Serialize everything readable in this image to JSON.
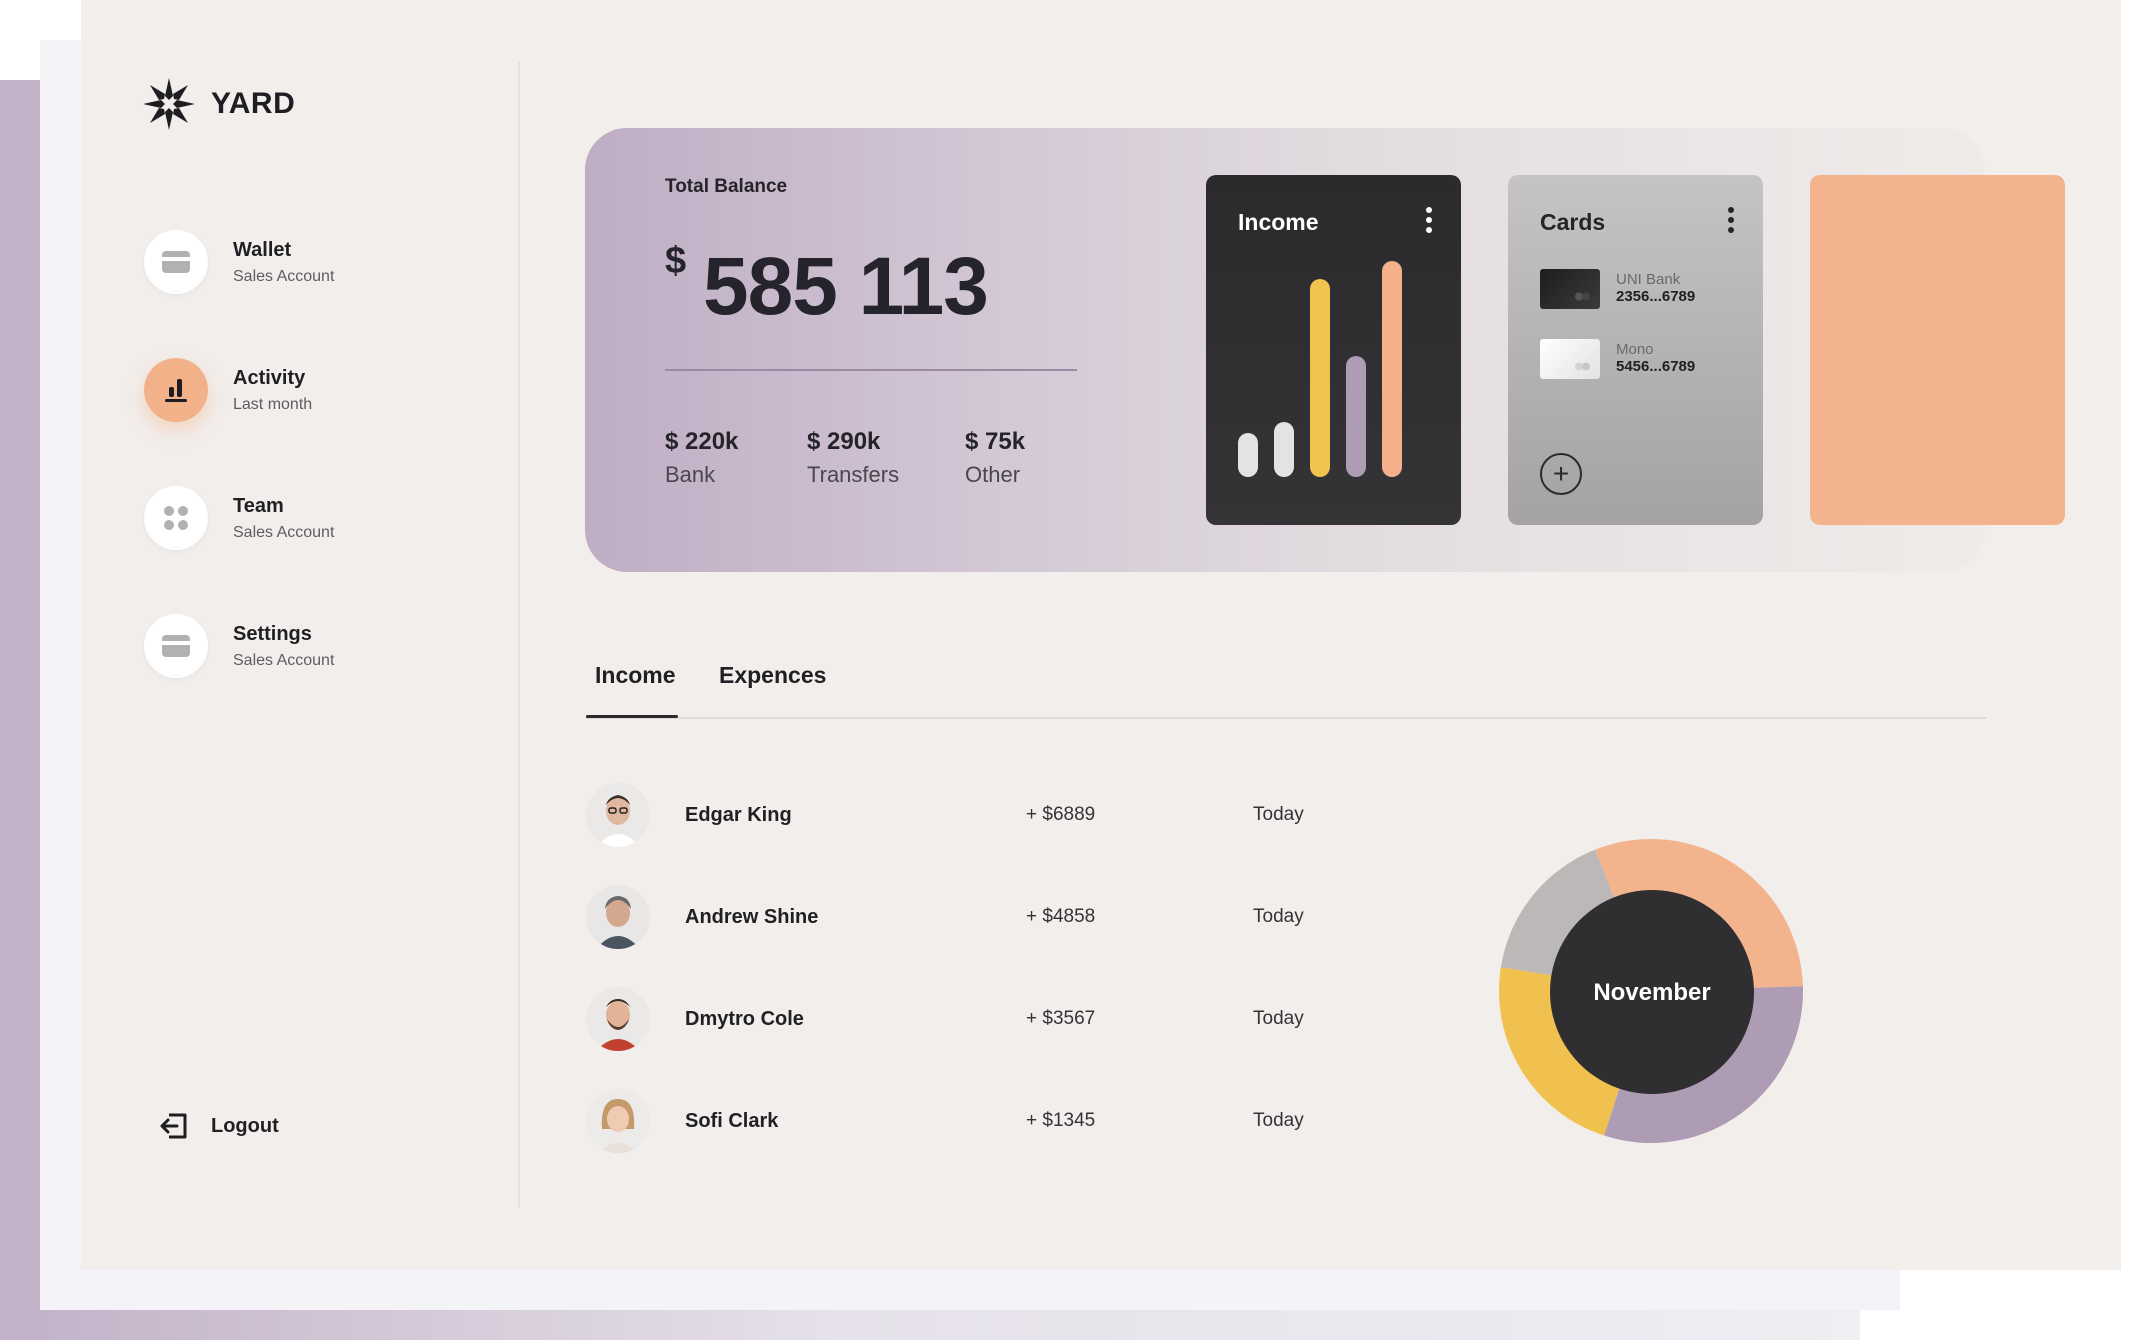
{
  "app": {
    "name": "YARD"
  },
  "sidebar": {
    "items": [
      {
        "label": "Wallet",
        "sub": "Sales Account",
        "icon": "card-icon"
      },
      {
        "label": "Activity",
        "sub": "Last month",
        "icon": "chart-icon",
        "active": true
      },
      {
        "label": "Team",
        "sub": "Sales Account",
        "icon": "grid-icon"
      },
      {
        "label": "Settings",
        "sub": "Sales Account",
        "icon": "card-icon"
      }
    ],
    "logout_label": "Logout"
  },
  "balance": {
    "label": "Total Balance",
    "currency": "$",
    "value": "585 113",
    "stats": [
      {
        "value": "$ 220k",
        "label": "Bank"
      },
      {
        "value": "$ 290k",
        "label": "Transfers"
      },
      {
        "value": "$ 75k",
        "label": "Other"
      }
    ]
  },
  "income_card": {
    "title": "Income",
    "bars": [
      {
        "value": 0.2,
        "color": "#e4e2e2"
      },
      {
        "value": 0.25,
        "color": "#e4e2e2"
      },
      {
        "value": 0.9,
        "color": "#f1c44f"
      },
      {
        "value": 0.55,
        "color": "#ad9cb3"
      },
      {
        "value": 0.98,
        "color": "#f3b08b"
      }
    ]
  },
  "cards_card": {
    "title": "Cards",
    "cards": [
      {
        "bank": "UNI Bank",
        "number": "2356...6789",
        "style": "dark"
      },
      {
        "bank": "Mono",
        "number": "5456...6789",
        "style": "light"
      }
    ],
    "add_label": "+"
  },
  "tabs": [
    {
      "label": "Income",
      "active": true
    },
    {
      "label": "Expences",
      "active": false
    }
  ],
  "transactions": [
    {
      "name": "Edgar King",
      "amount": "+ $6889",
      "date": "Today"
    },
    {
      "name": "Andrew Shine",
      "amount": "+ $4858",
      "date": "Today"
    },
    {
      "name": "Dmytro Cole",
      "amount": "+ $3567",
      "date": "Today"
    },
    {
      "name": "Sofi Clark",
      "amount": "+ $1345",
      "date": "Today"
    }
  ],
  "donut": {
    "center_label": "November",
    "segments": [
      {
        "value": 0.305,
        "color": "#f3b48d"
      },
      {
        "value": 0.305,
        "color": "#ad9cb3"
      },
      {
        "value": 0.225,
        "color": "#f0c14f"
      },
      {
        "value": 0.165,
        "color": "#bbb8b7"
      }
    ]
  },
  "colors": {
    "accent": "#f3b18a",
    "dark": "#2b2a2c",
    "background": "#f2eeeb"
  }
}
